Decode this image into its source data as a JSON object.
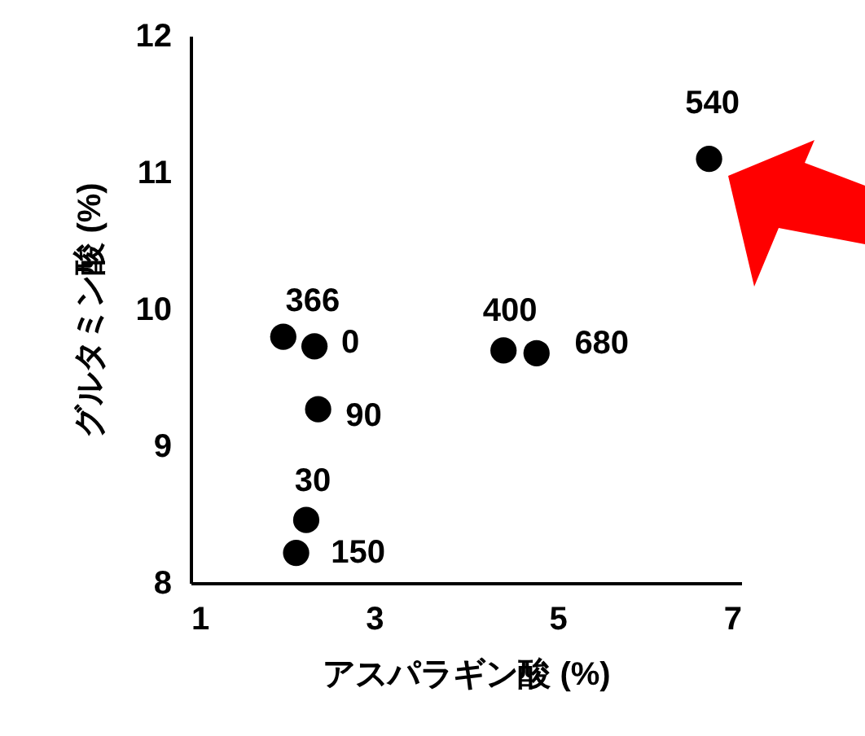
{
  "chart_data": {
    "type": "scatter",
    "xlabel": "アスパラギン酸 (%)",
    "ylabel": "グルタミン酸 (%)",
    "xlim": [
      1,
      7
    ],
    "xticks": [
      1,
      3,
      5,
      7
    ],
    "ylim": [
      8,
      12
    ],
    "yticks": [
      8,
      9,
      10,
      11,
      12
    ],
    "grid": false,
    "marker": "circle",
    "series": [
      {
        "color": "#000000",
        "x": [
          6.65,
          2.01,
          2.35,
          2.39,
          4.41,
          4.77,
          2.26,
          2.15
        ],
        "values": [
          11.1,
          9.8,
          9.73,
          9.27,
          9.7,
          9.68,
          8.46,
          8.22
        ]
      }
    ],
    "annotations": [
      {
        "text": "540",
        "x": 6.65,
        "y": 11.1
      },
      {
        "text": "366",
        "x": 2.01,
        "y": 9.8
      },
      {
        "text": "0",
        "x": 2.35,
        "y": 9.73
      },
      {
        "text": "90",
        "x": 2.39,
        "y": 9.27
      },
      {
        "text": "400",
        "x": 4.41,
        "y": 9.7
      },
      {
        "text": "680",
        "x": 4.77,
        "y": 9.68
      },
      {
        "text": "30",
        "x": 2.26,
        "y": 8.46
      },
      {
        "text": "150",
        "x": 2.15,
        "y": 8.22
      }
    ]
  }
}
